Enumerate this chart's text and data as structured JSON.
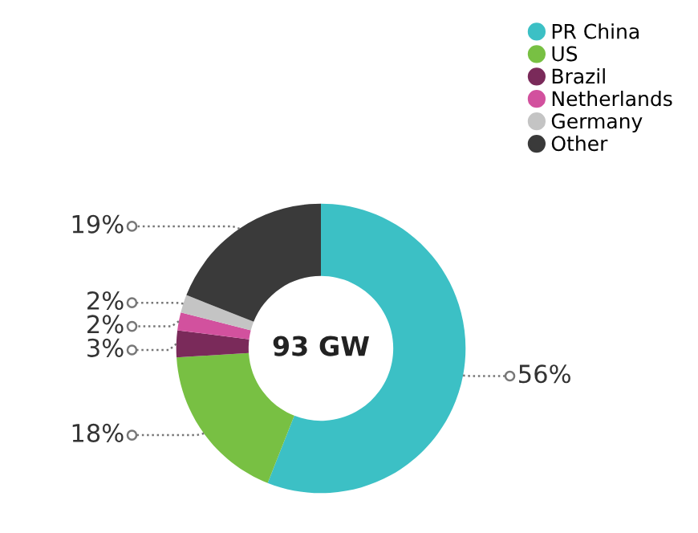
{
  "chart_data": {
    "type": "donut",
    "categories": [
      "PR China",
      "US",
      "Brazil",
      "Netherlands",
      "Germany",
      "Other"
    ],
    "values": [
      56,
      18,
      3,
      2,
      2,
      19
    ],
    "colors": [
      "#3cc0c5",
      "#78c043",
      "#7a2a5a",
      "#d2519e",
      "#c4c4c4",
      "#3a3a3a"
    ],
    "value_labels": [
      "56%",
      "18%",
      "3%",
      "2%",
      "2%",
      "19%"
    ],
    "annotations": [
      "93 GW"
    ],
    "legend": "top right"
  }
}
